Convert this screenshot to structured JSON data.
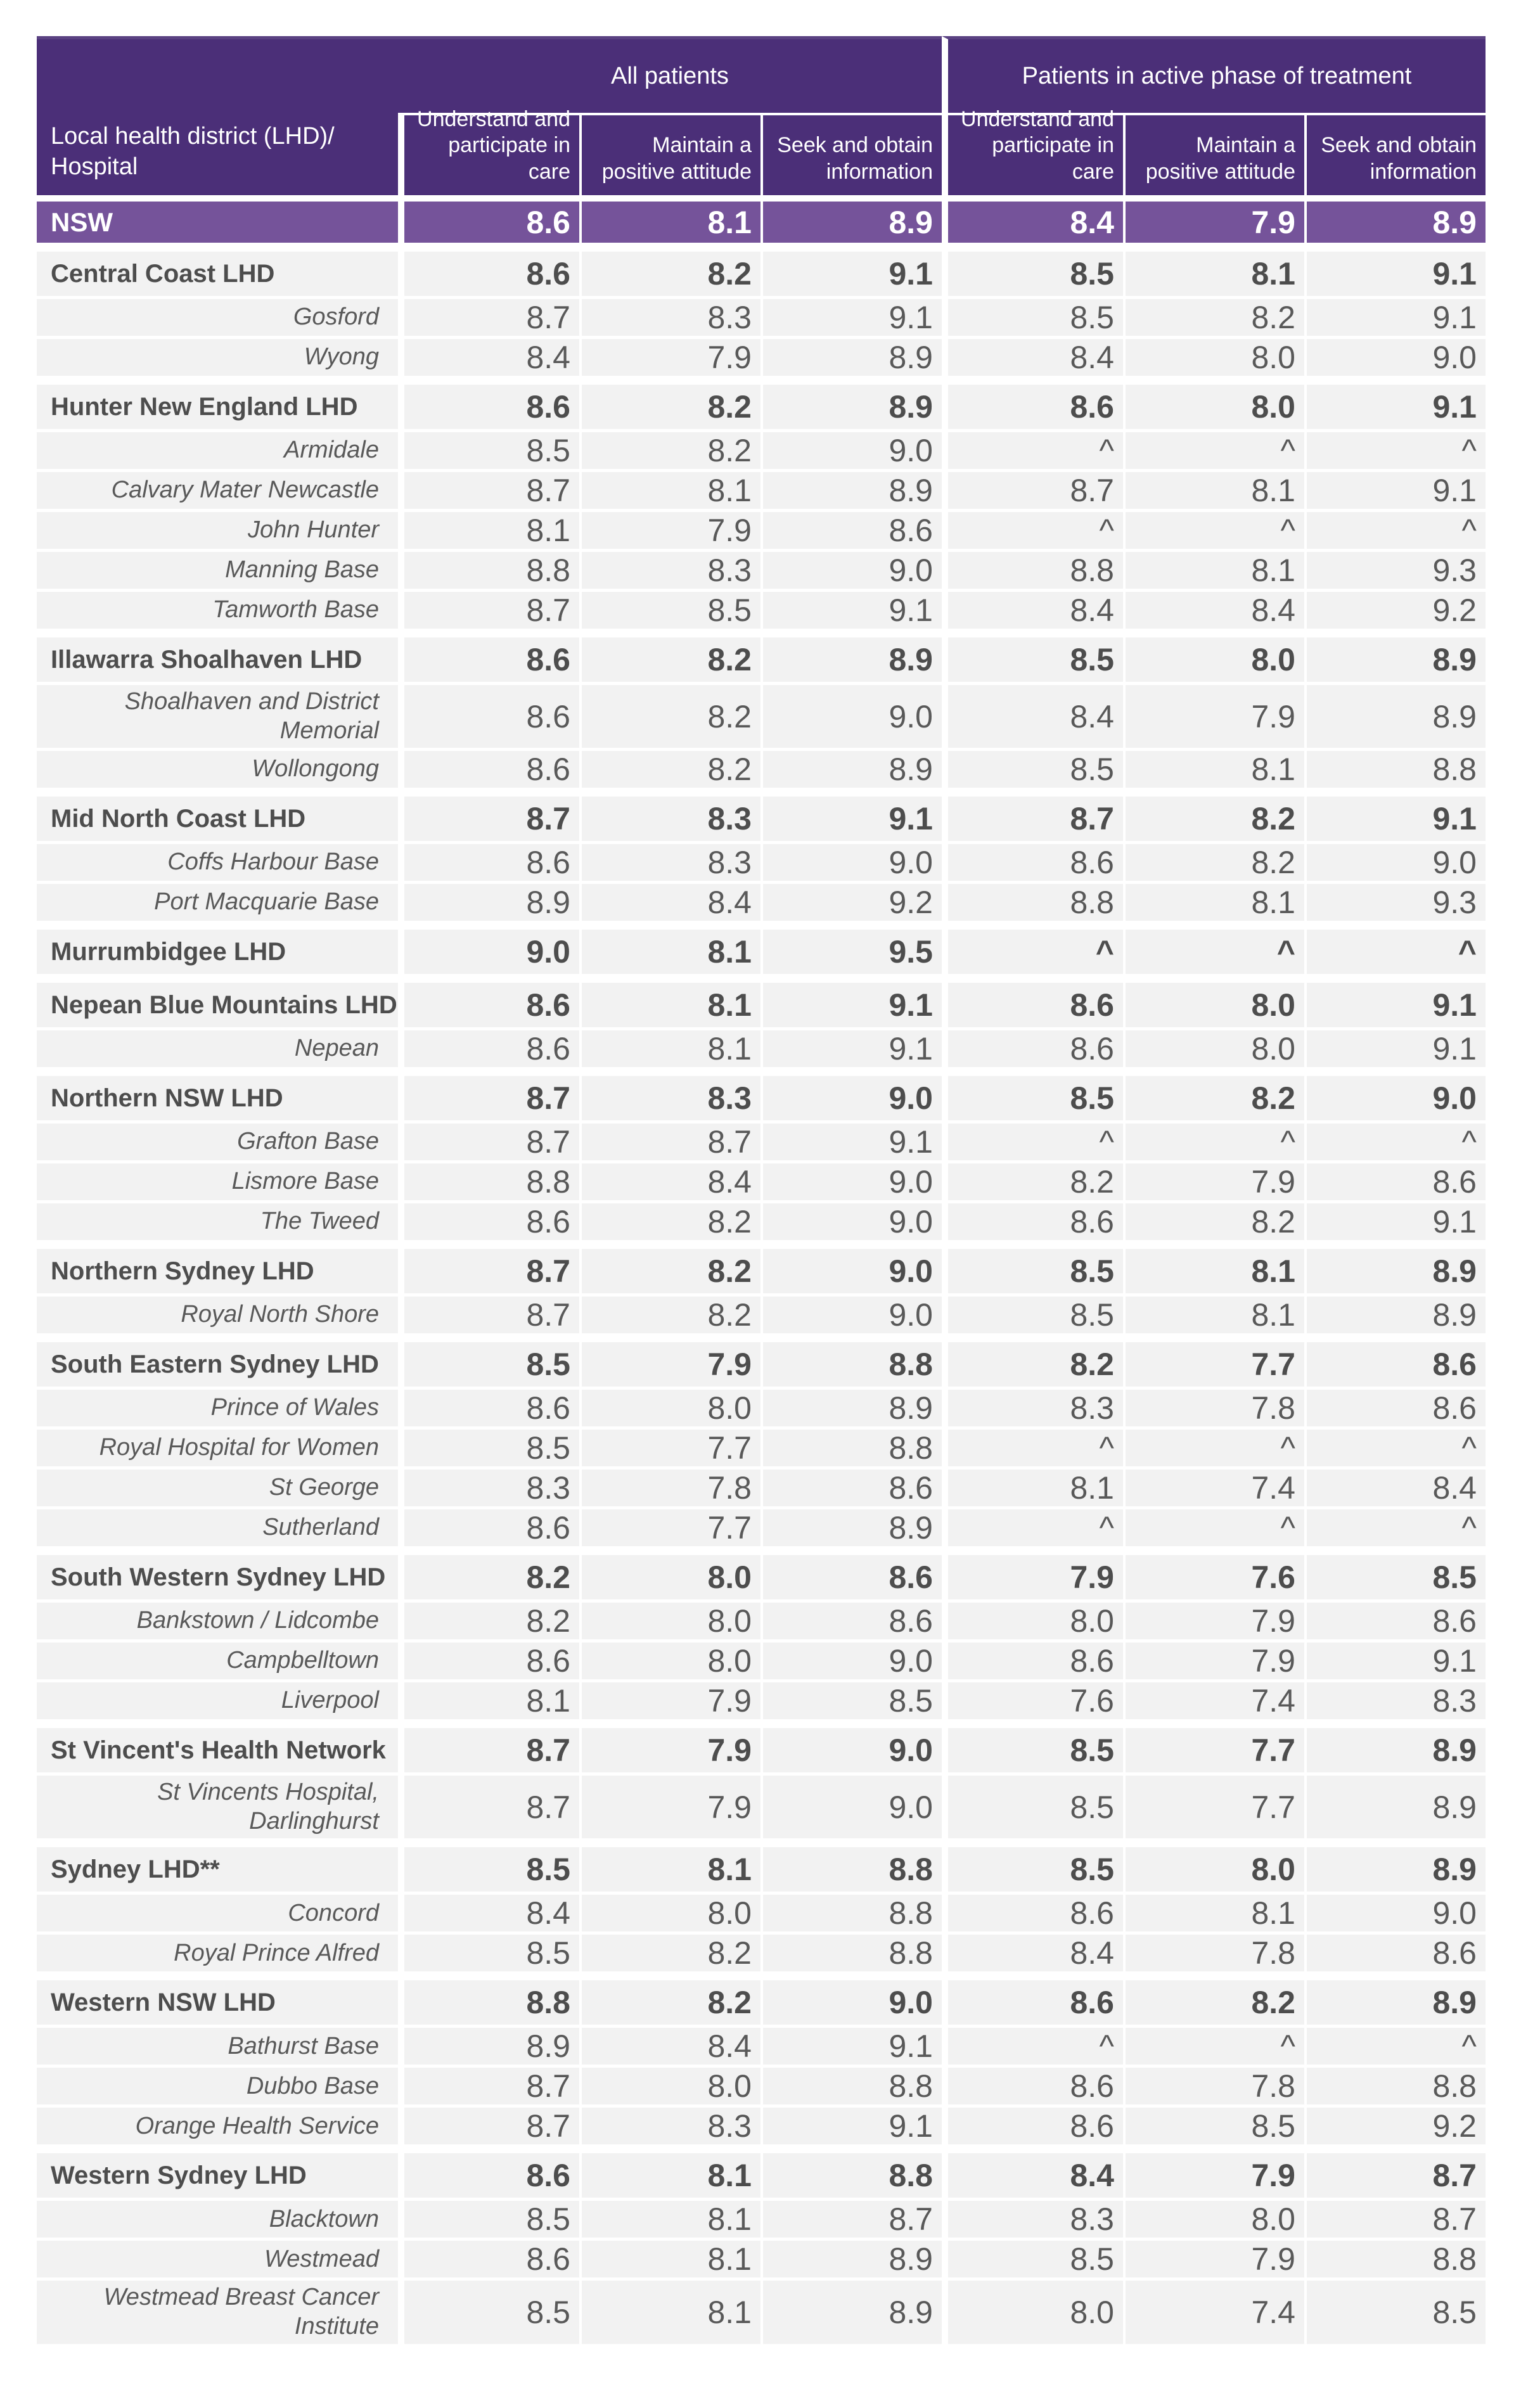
{
  "colors": {
    "header_purple": "#4B2F78",
    "header_top_line": "#5A4282",
    "summary_purple": "#75539A",
    "row_bg": "#F2F2F2",
    "text_dark": "#4D4D4D",
    "text_gray": "#595959"
  },
  "chart_data": {
    "type": "table",
    "corner_header": [
      "Local health district (LHD)/",
      "Hospital"
    ],
    "column_groups": [
      "All patients",
      "Patients in active phase of treatment"
    ],
    "columns": [
      "Understand and participate in care",
      "Maintain a positive attitude",
      "Seek and obtain information",
      "Understand and participate in care",
      "Maintain a positive attitude",
      "Seek and obtain information"
    ],
    "summary_row": {
      "label": "NSW",
      "values": [
        "8.6",
        "8.1",
        "8.9",
        "8.4",
        "7.9",
        "8.9"
      ]
    },
    "rows": [
      {
        "type": "lhd",
        "label": "Central Coast LHD",
        "values": [
          "8.6",
          "8.2",
          "9.1",
          "8.5",
          "8.1",
          "9.1"
        ]
      },
      {
        "type": "hospital",
        "label": "Gosford",
        "values": [
          "8.7",
          "8.3",
          "9.1",
          "8.5",
          "8.2",
          "9.1"
        ]
      },
      {
        "type": "hospital",
        "label": "Wyong",
        "values": [
          "8.4",
          "7.9",
          "8.9",
          "8.4",
          "8.0",
          "9.0"
        ]
      },
      {
        "type": "lhd",
        "label": "Hunter New England LHD",
        "values": [
          "8.6",
          "8.2",
          "8.9",
          "8.6",
          "8.0",
          "9.1"
        ]
      },
      {
        "type": "hospital",
        "label": "Armidale",
        "values": [
          "8.5",
          "8.2",
          "9.0",
          "^",
          "^",
          "^"
        ]
      },
      {
        "type": "hospital",
        "label": "Calvary Mater Newcastle",
        "values": [
          "8.7",
          "8.1",
          "8.9",
          "8.7",
          "8.1",
          "9.1"
        ]
      },
      {
        "type": "hospital",
        "label": "John Hunter",
        "values": [
          "8.1",
          "7.9",
          "8.6",
          "^",
          "^",
          "^"
        ]
      },
      {
        "type": "hospital",
        "label": "Manning Base",
        "values": [
          "8.8",
          "8.3",
          "9.0",
          "8.8",
          "8.1",
          "9.3"
        ]
      },
      {
        "type": "hospital",
        "label": "Tamworth Base",
        "values": [
          "8.7",
          "8.5",
          "9.1",
          "8.4",
          "8.4",
          "9.2"
        ]
      },
      {
        "type": "lhd",
        "label": "Illawarra Shoalhaven LHD",
        "values": [
          "8.6",
          "8.2",
          "8.9",
          "8.5",
          "8.0",
          "8.9"
        ]
      },
      {
        "type": "hospital",
        "label": "Shoalhaven and District Memorial",
        "values": [
          "8.6",
          "8.2",
          "9.0",
          "8.4",
          "7.9",
          "8.9"
        ]
      },
      {
        "type": "hospital",
        "label": "Wollongong",
        "values": [
          "8.6",
          "8.2",
          "8.9",
          "8.5",
          "8.1",
          "8.8"
        ]
      },
      {
        "type": "lhd",
        "label": "Mid North Coast LHD",
        "values": [
          "8.7",
          "8.3",
          "9.1",
          "8.7",
          "8.2",
          "9.1"
        ]
      },
      {
        "type": "hospital",
        "label": "Coffs Harbour Base",
        "values": [
          "8.6",
          "8.3",
          "9.0",
          "8.6",
          "8.2",
          "9.0"
        ]
      },
      {
        "type": "hospital",
        "label": "Port Macquarie Base",
        "values": [
          "8.9",
          "8.4",
          "9.2",
          "8.8",
          "8.1",
          "9.3"
        ]
      },
      {
        "type": "lhd",
        "label": "Murrumbidgee LHD",
        "values": [
          "9.0",
          "8.1",
          "9.5",
          "^",
          "^",
          "^"
        ]
      },
      {
        "type": "lhd",
        "label": "Nepean Blue Mountains LHD",
        "values": [
          "8.6",
          "8.1",
          "9.1",
          "8.6",
          "8.0",
          "9.1"
        ]
      },
      {
        "type": "hospital",
        "label": "Nepean",
        "values": [
          "8.6",
          "8.1",
          "9.1",
          "8.6",
          "8.0",
          "9.1"
        ]
      },
      {
        "type": "lhd",
        "label": "Northern NSW LHD",
        "values": [
          "8.7",
          "8.3",
          "9.0",
          "8.5",
          "8.2",
          "9.0"
        ]
      },
      {
        "type": "hospital",
        "label": "Grafton Base",
        "values": [
          "8.7",
          "8.7",
          "9.1",
          "^",
          "^",
          "^"
        ]
      },
      {
        "type": "hospital",
        "label": "Lismore Base",
        "values": [
          "8.8",
          "8.4",
          "9.0",
          "8.2",
          "7.9",
          "8.6"
        ]
      },
      {
        "type": "hospital",
        "label": "The Tweed",
        "values": [
          "8.6",
          "8.2",
          "9.0",
          "8.6",
          "8.2",
          "9.1"
        ]
      },
      {
        "type": "lhd",
        "label": "Northern Sydney LHD",
        "values": [
          "8.7",
          "8.2",
          "9.0",
          "8.5",
          "8.1",
          "8.9"
        ]
      },
      {
        "type": "hospital",
        "label": "Royal North Shore",
        "values": [
          "8.7",
          "8.2",
          "9.0",
          "8.5",
          "8.1",
          "8.9"
        ]
      },
      {
        "type": "lhd",
        "label": "South Eastern Sydney LHD",
        "values": [
          "8.5",
          "7.9",
          "8.8",
          "8.2",
          "7.7",
          "8.6"
        ]
      },
      {
        "type": "hospital",
        "label": "Prince of Wales",
        "values": [
          "8.6",
          "8.0",
          "8.9",
          "8.3",
          "7.8",
          "8.6"
        ]
      },
      {
        "type": "hospital",
        "label": "Royal Hospital for Women",
        "values": [
          "8.5",
          "7.7",
          "8.8",
          "^",
          "^",
          "^"
        ]
      },
      {
        "type": "hospital",
        "label": "St George",
        "values": [
          "8.3",
          "7.8",
          "8.6",
          "8.1",
          "7.4",
          "8.4"
        ]
      },
      {
        "type": "hospital",
        "label": "Sutherland",
        "values": [
          "8.6",
          "7.7",
          "8.9",
          "^",
          "^",
          "^"
        ]
      },
      {
        "type": "lhd",
        "label": "South Western Sydney LHD",
        "values": [
          "8.2",
          "8.0",
          "8.6",
          "7.9",
          "7.6",
          "8.5"
        ]
      },
      {
        "type": "hospital",
        "label": "Bankstown / Lidcombe",
        "values": [
          "8.2",
          "8.0",
          "8.6",
          "8.0",
          "7.9",
          "8.6"
        ]
      },
      {
        "type": "hospital",
        "label": "Campbelltown",
        "values": [
          "8.6",
          "8.0",
          "9.0",
          "8.6",
          "7.9",
          "9.1"
        ]
      },
      {
        "type": "hospital",
        "label": "Liverpool",
        "values": [
          "8.1",
          "7.9",
          "8.5",
          "7.6",
          "7.4",
          "8.3"
        ]
      },
      {
        "type": "lhd",
        "label": "St Vincent's Health Network",
        "values": [
          "8.7",
          "7.9",
          "9.0",
          "8.5",
          "7.7",
          "8.9"
        ]
      },
      {
        "type": "hospital",
        "label": "St Vincents Hospital, Darlinghurst",
        "values": [
          "8.7",
          "7.9",
          "9.0",
          "8.5",
          "7.7",
          "8.9"
        ]
      },
      {
        "type": "lhd",
        "label": "Sydney LHD**",
        "values": [
          "8.5",
          "8.1",
          "8.8",
          "8.5",
          "8.0",
          "8.9"
        ]
      },
      {
        "type": "hospital",
        "label": "Concord",
        "values": [
          "8.4",
          "8.0",
          "8.8",
          "8.6",
          "8.1",
          "9.0"
        ]
      },
      {
        "type": "hospital",
        "label": "Royal Prince Alfred",
        "values": [
          "8.5",
          "8.2",
          "8.8",
          "8.4",
          "7.8",
          "8.6"
        ]
      },
      {
        "type": "lhd",
        "label": "Western NSW LHD",
        "values": [
          "8.8",
          "8.2",
          "9.0",
          "8.6",
          "8.2",
          "8.9"
        ]
      },
      {
        "type": "hospital",
        "label": "Bathurst Base",
        "values": [
          "8.9",
          "8.4",
          "9.1",
          "^",
          "^",
          "^"
        ]
      },
      {
        "type": "hospital",
        "label": "Dubbo Base",
        "values": [
          "8.7",
          "8.0",
          "8.8",
          "8.6",
          "7.8",
          "8.8"
        ]
      },
      {
        "type": "hospital",
        "label": "Orange Health Service",
        "values": [
          "8.7",
          "8.3",
          "9.1",
          "8.6",
          "8.5",
          "9.2"
        ]
      },
      {
        "type": "lhd",
        "label": "Western Sydney LHD",
        "values": [
          "8.6",
          "8.1",
          "8.8",
          "8.4",
          "7.9",
          "8.7"
        ]
      },
      {
        "type": "hospital",
        "label": "Blacktown",
        "values": [
          "8.5",
          "8.1",
          "8.7",
          "8.3",
          "8.0",
          "8.7"
        ]
      },
      {
        "type": "hospital",
        "label": "Westmead",
        "values": [
          "8.6",
          "8.1",
          "8.9",
          "8.5",
          "7.9",
          "8.8"
        ]
      },
      {
        "type": "hospital",
        "label": "Westmead Breast Cancer Institute",
        "values": [
          "8.5",
          "8.1",
          "8.9",
          "8.0",
          "7.4",
          "8.5"
        ]
      }
    ]
  }
}
